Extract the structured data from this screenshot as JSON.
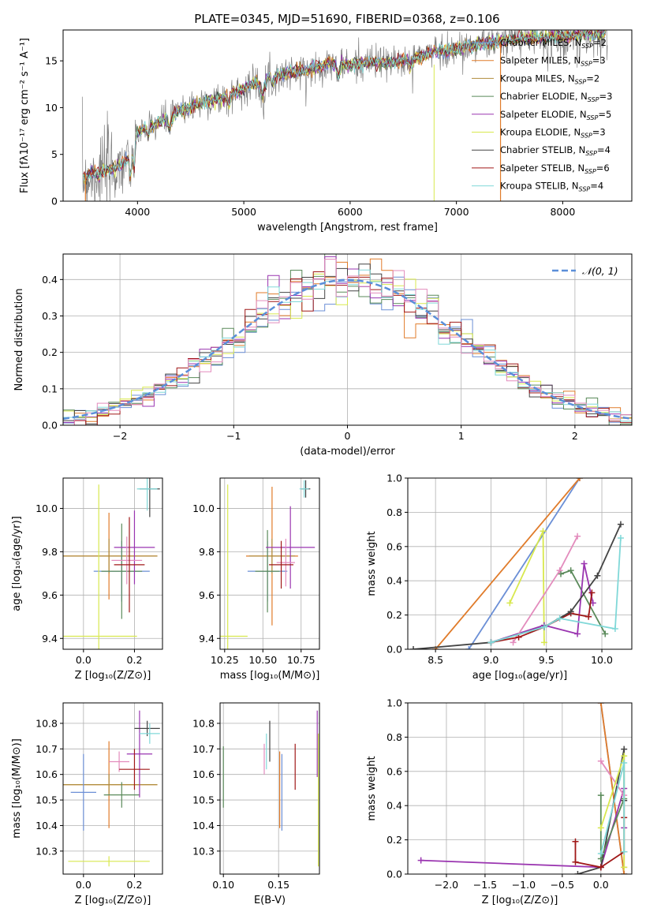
{
  "figure": {
    "title": "PLATE=0345, MJD=51690, FIBERID=0368, z=0.106"
  },
  "palette": {
    "Chabrier MILES": "#6b8fd6",
    "Salpeter MILES": "#e07b2a",
    "Kroupa MILES": "#b08c3c",
    "Chabrier ELODIE": "#5a8a5a",
    "Salpeter ELODIE": "#9a35b0",
    "Kroupa ELODIE": "#d8e84e",
    "Chabrier STELIB": "#444444",
    "Salpeter STELIB": "#a01818",
    "Kroupa STELIB": "#80d8d8",
    "extra_pink": "#e38cbd",
    "normal_curve": "#5b8fd9",
    "data_spectrum": "#808080"
  },
  "chart_data": [
    {
      "id": "spectrum",
      "type": "line",
      "xlabel": "wavelength [Angstrom, rest frame]",
      "ylabel": "Flux [fλ10⁻¹⁷ erg cm⁻² s⁻¹ A⁻¹]",
      "xlim": [
        3300,
        8650
      ],
      "ylim": [
        0,
        18.3
      ],
      "xticks": [
        4000,
        5000,
        6000,
        7000,
        8000
      ],
      "yticks": [
        0,
        5,
        10,
        15
      ],
      "legend_position": "right",
      "legend": [
        {
          "label": "Chabrier MILES, N",
          "sub": "SSP",
          "suffix": "=2",
          "key": "Chabrier MILES"
        },
        {
          "label": "Salpeter MILES, N",
          "sub": "SSP",
          "suffix": "=3",
          "key": "Salpeter MILES"
        },
        {
          "label": "Kroupa MILES, N",
          "sub": "SSP",
          "suffix": "=2",
          "key": "Kroupa MILES"
        },
        {
          "label": "Chabrier ELODIE, N",
          "sub": "SSP",
          "suffix": "=3",
          "key": "Chabrier ELODIE"
        },
        {
          "label": "Salpeter ELODIE, N",
          "sub": "SSP",
          "suffix": "=5",
          "key": "Salpeter ELODIE"
        },
        {
          "label": "Kroupa ELODIE, N",
          "sub": "SSP",
          "suffix": "=3",
          "key": "Kroupa ELODIE"
        },
        {
          "label": "Chabrier STELIB, N",
          "sub": "SSP",
          "suffix": "=4",
          "key": "Chabrier STELIB"
        },
        {
          "label": "Salpeter STELIB, N",
          "sub": "SSP",
          "suffix": "=6",
          "key": "Salpeter STELIB"
        },
        {
          "label": "Kroupa STELIB, N",
          "sub": "SSP",
          "suffix": "=4",
          "key": "Kroupa STELIB"
        }
      ],
      "continuum": [
        [
          3480,
          2.6
        ],
        [
          3600,
          2.9
        ],
        [
          3700,
          3.2
        ],
        [
          3800,
          3.5
        ],
        [
          3900,
          4.5
        ],
        [
          4000,
          7.4
        ],
        [
          4200,
          8.4
        ],
        [
          4400,
          9.6
        ],
        [
          4600,
          10.5
        ],
        [
          4800,
          11.0
        ],
        [
          5000,
          12.0
        ],
        [
          5200,
          13.2
        ],
        [
          5400,
          13.7
        ],
        [
          5600,
          14.0
        ],
        [
          5800,
          14.7
        ],
        [
          6000,
          14.5
        ],
        [
          6200,
          14.9
        ],
        [
          6400,
          14.8
        ],
        [
          6600,
          15.3
        ],
        [
          6800,
          16.0
        ],
        [
          7000,
          16.2
        ],
        [
          7200,
          16.8
        ],
        [
          7400,
          17.0
        ],
        [
          7600,
          17.4
        ],
        [
          7800,
          17.5
        ],
        [
          8000,
          17.6
        ],
        [
          8200,
          17.8
        ],
        [
          8400,
          17.9
        ]
      ]
    },
    {
      "id": "residuals",
      "type": "bar",
      "xlabel": "(data-model)/error",
      "ylabel": "Normed distribution",
      "xlim": [
        -2.5,
        2.5
      ],
      "ylim": [
        0,
        0.47
      ],
      "xticks": [
        -2,
        -1,
        0,
        1,
        2
      ],
      "yticks": [
        0.0,
        0.1,
        0.2,
        0.3,
        0.4
      ],
      "bin_width": 0.1,
      "legend": "𝒩(0, 1)",
      "legend_position": "top-right",
      "series_keys": [
        "Chabrier MILES",
        "Salpeter MILES",
        "Chabrier ELODIE",
        "Salpeter ELODIE",
        "Kroupa ELODIE",
        "Chabrier STELIB",
        "Salpeter STELIB",
        "Kroupa STELIB",
        "extra_pink"
      ]
    },
    {
      "id": "age-vs-Z",
      "type": "scatter",
      "xlabel": "Z [log₁₀(Z/Z⊙)]",
      "ylabel": "age  [log₁₀(age/yr)]",
      "xlim": [
        -0.08,
        0.31
      ],
      "ylim": [
        9.35,
        10.14
      ],
      "xticks": [
        0.0,
        0.2
      ],
      "yticks": [
        9.4,
        9.6,
        9.8,
        10.0
      ],
      "points": [
        {
          "key": "Salpeter MILES",
          "x": 0.1,
          "y": 9.78,
          "xe": 0.19,
          "ye": 0.2
        },
        {
          "key": "Kroupa MILES",
          "x": 0.1,
          "y": 9.78,
          "xe": 0.19,
          "ye": 0.08
        },
        {
          "key": "Chabrier MILES",
          "x": 0.15,
          "y": 9.71,
          "xe": 0.11,
          "ye": 0.14
        },
        {
          "key": "Chabrier ELODIE",
          "x": 0.15,
          "y": 9.71,
          "xe": 0.08,
          "ye": 0.22
        },
        {
          "key": "Salpeter ELODIE",
          "x": 0.2,
          "y": 9.82,
          "xe": 0.08,
          "ye": 0.17
        },
        {
          "key": "extra_pink",
          "x": 0.17,
          "y": 9.76,
          "xe": 0.06,
          "ye": 0.11
        },
        {
          "key": "Salpeter STELIB",
          "x": 0.18,
          "y": 9.74,
          "xe": 0.06,
          "ye": 0.22
        },
        {
          "key": "Kroupa ELODIE",
          "x": 0.06,
          "y": 9.41,
          "xe": 0.15,
          "ye": 0.7
        },
        {
          "key": "Chabrier STELIB",
          "x": 0.26,
          "y": 10.09,
          "xe": 0.04,
          "ye": 0.13
        },
        {
          "key": "Kroupa STELIB",
          "x": 0.25,
          "y": 10.09,
          "xe": 0.04,
          "ye": 0.1
        }
      ]
    },
    {
      "id": "age-vs-mass",
      "type": "scatter",
      "xlabel": "mass [log₁₀(M/M⊙)]",
      "ylabel": "",
      "xlim": [
        10.22,
        10.87
      ],
      "ylim": [
        9.35,
        10.14
      ],
      "xticks": [
        10.25,
        10.5,
        10.75
      ],
      "yticks": [
        9.4,
        9.6,
        9.8,
        10.0
      ],
      "points": [
        {
          "key": "Salpeter MILES",
          "x": 10.56,
          "y": 9.78,
          "xe": 0.17,
          "ye": 0.32
        },
        {
          "key": "Kroupa MILES",
          "x": 10.56,
          "y": 9.78,
          "xe": 0.15,
          "ye": 0.08
        },
        {
          "key": "Chabrier MILES",
          "x": 10.53,
          "y": 9.71,
          "xe": 0.13,
          "ye": 0.14
        },
        {
          "key": "Chabrier ELODIE",
          "x": 10.53,
          "y": 9.71,
          "xe": 0.08,
          "ye": 0.19
        },
        {
          "key": "Salpeter ELODIE",
          "x": 10.68,
          "y": 9.82,
          "xe": 0.16,
          "ye": 0.19
        },
        {
          "key": "extra_pink",
          "x": 10.65,
          "y": 9.75,
          "xe": 0.06,
          "ye": 0.11
        },
        {
          "key": "Salpeter STELIB",
          "x": 10.62,
          "y": 9.74,
          "xe": 0.08,
          "ye": 0.11
        },
        {
          "key": "Kroupa ELODIE",
          "x": 10.27,
          "y": 9.41,
          "xe": 0.13,
          "ye": 0.7
        },
        {
          "key": "Chabrier STELIB",
          "x": 10.78,
          "y": 10.09,
          "xe": 0.03,
          "ye": 0.04
        },
        {
          "key": "Kroupa STELIB",
          "x": 10.77,
          "y": 10.09,
          "xe": 0.03,
          "ye": 0.04
        }
      ]
    },
    {
      "id": "massweight-vs-age",
      "type": "line",
      "xlabel": "age  [log₁₀(age/yr)]",
      "ylabel": "mass weight",
      "xlim": [
        8.25,
        10.27
      ],
      "ylim": [
        0,
        1
      ],
      "xticks": [
        8.5,
        9.0,
        9.5,
        10.0
      ],
      "yticks": [
        0.0,
        0.2,
        0.4,
        0.6,
        0.8,
        1.0
      ],
      "series": [
        {
          "key": "Chabrier MILES",
          "points": [
            [
              8.8,
              0.0
            ],
            [
              9.8,
              1.0
            ]
          ]
        },
        {
          "key": "Salpeter MILES",
          "points": [
            [
              8.5,
              0.0
            ],
            [
              9.8,
              1.0
            ]
          ]
        },
        {
          "key": "Kroupa ELODIE",
          "points": [
            [
              9.17,
              0.27
            ],
            [
              9.47,
              0.69
            ],
            [
              9.48,
              0.04
            ]
          ]
        },
        {
          "key": "Chabrier ELODIE",
          "points": [
            [
              9.63,
              0.44
            ],
            [
              9.72,
              0.46
            ],
            [
              10.03,
              0.09
            ]
          ]
        },
        {
          "key": "Salpeter ELODIE",
          "points": [
            [
              9.0,
              0.04
            ],
            [
              9.48,
              0.14
            ],
            [
              9.78,
              0.09
            ],
            [
              9.84,
              0.5
            ],
            [
              9.92,
              0.27
            ]
          ]
        },
        {
          "key": "extra_pink",
          "points": [
            [
              9.2,
              0.04
            ],
            [
              9.62,
              0.46
            ],
            [
              9.78,
              0.66
            ]
          ]
        },
        {
          "key": "Salpeter STELIB",
          "points": [
            [
              9.0,
              0.04
            ],
            [
              9.25,
              0.07
            ],
            [
              9.48,
              0.13
            ],
            [
              9.72,
              0.21
            ],
            [
              9.88,
              0.19
            ],
            [
              9.91,
              0.33
            ]
          ]
        },
        {
          "key": "Chabrier STELIB",
          "points": [
            [
              8.3,
              0.0
            ],
            [
              9.0,
              0.04
            ],
            [
              9.48,
              0.13
            ],
            [
              9.72,
              0.22
            ],
            [
              9.96,
              0.43
            ],
            [
              10.17,
              0.73
            ]
          ]
        },
        {
          "key": "Kroupa STELIB",
          "points": [
            [
              9.0,
              0.04
            ],
            [
              9.48,
              0.13
            ],
            [
              9.62,
              0.18
            ],
            [
              10.12,
              0.12
            ],
            [
              10.17,
              0.65
            ]
          ]
        }
      ]
    },
    {
      "id": "mass-vs-Z",
      "type": "scatter",
      "xlabel": "Z [log₁₀(Z/Z⊙)]",
      "ylabel": "mass [log₁₀(M/M⊙)]",
      "xlim": [
        -0.08,
        0.31
      ],
      "ylim": [
        10.21,
        10.88
      ],
      "xticks": [
        0.0,
        0.2
      ],
      "yticks": [
        10.3,
        10.4,
        10.5,
        10.6,
        10.7,
        10.8
      ],
      "points": [
        {
          "key": "Salpeter MILES",
          "x": 0.1,
          "y": 10.56,
          "xe": 0.19,
          "ye": 0.17
        },
        {
          "key": "Kroupa MILES",
          "x": 0.1,
          "y": 10.56,
          "xe": 0.19,
          "ye": 0.04
        },
        {
          "key": "Chabrier MILES",
          "x": 0.0,
          "y": 10.53,
          "xe": 0.05,
          "ye": 0.15
        },
        {
          "key": "Chabrier ELODIE",
          "x": 0.15,
          "y": 10.52,
          "xe": 0.07,
          "ye": 0.05
        },
        {
          "key": "Salpeter ELODIE",
          "x": 0.22,
          "y": 10.68,
          "xe": 0.05,
          "ye": 0.17
        },
        {
          "key": "extra_pink",
          "x": 0.14,
          "y": 10.65,
          "xe": 0.04,
          "ye": 0.04
        },
        {
          "key": "Salpeter STELIB",
          "x": 0.2,
          "y": 10.62,
          "xe": 0.06,
          "ye": 0.08
        },
        {
          "key": "Kroupa ELODIE",
          "x": 0.1,
          "y": 10.26,
          "xe": 0.16,
          "ye": 0.02
        },
        {
          "key": "Chabrier STELIB",
          "x": 0.25,
          "y": 10.78,
          "xe": 0.05,
          "ye": 0.03
        },
        {
          "key": "Kroupa STELIB",
          "x": 0.26,
          "y": 10.76,
          "xe": 0.04,
          "ye": 0.04
        }
      ]
    },
    {
      "id": "mass-vs-EBV",
      "type": "scatter",
      "xlabel": "E(B-V)",
      "ylabel": "",
      "xlim": [
        0.097,
        0.187
      ],
      "ylim": [
        10.21,
        10.88
      ],
      "xticks": [
        0.1,
        0.15
      ],
      "yticks": [
        10.3,
        10.4,
        10.5,
        10.6,
        10.7,
        10.8
      ],
      "points": [
        {
          "key": "Chabrier ELODIE",
          "x": 0.1,
          "y": 10.59,
          "xe": 0,
          "ye": 0.12
        },
        {
          "key": "Salpeter MILES",
          "x": 0.151,
          "y": 10.54,
          "xe": 0,
          "ye": 0.15
        },
        {
          "key": "Chabrier MILES",
          "x": 0.153,
          "y": 10.53,
          "xe": 0,
          "ye": 0.15
        },
        {
          "key": "extra_pink",
          "x": 0.137,
          "y": 10.66,
          "xe": 0,
          "ye": 0.06
        },
        {
          "key": "Chabrier STELIB",
          "x": 0.142,
          "y": 10.73,
          "xe": 0,
          "ye": 0.08
        },
        {
          "key": "Kroupa STELIB",
          "x": 0.139,
          "y": 10.69,
          "xe": 0,
          "ye": 0.07
        },
        {
          "key": "Salpeter STELIB",
          "x": 0.165,
          "y": 10.63,
          "xe": 0,
          "ye": 0.09
        },
        {
          "key": "Salpeter ELODIE",
          "x": 0.185,
          "y": 10.72,
          "xe": 0,
          "ye": 0.13
        },
        {
          "key": "Kroupa ELODIE",
          "x": 0.186,
          "y": 10.5,
          "xe": 0,
          "ye": 0.26
        }
      ]
    },
    {
      "id": "massweight-vs-Z",
      "type": "line",
      "xlabel": "Z [log₁₀(Z/Z⊙)]",
      "ylabel": "mass weight",
      "xlim": [
        -2.5,
        0.4
      ],
      "ylim": [
        0,
        1
      ],
      "xticks": [
        -2.0,
        -1.5,
        -1.0,
        -0.5,
        0.0
      ],
      "yticks": [
        0.0,
        0.2,
        0.4,
        0.6,
        0.8,
        1.0
      ],
      "series": [
        {
          "key": "Chabrier MILES",
          "points": [
            [
              0.0,
              1.0
            ],
            [
              0.3,
              0.0
            ]
          ]
        },
        {
          "key": "Salpeter MILES",
          "points": [
            [
              0.0,
              1.0
            ],
            [
              0.3,
              0.0
            ]
          ]
        },
        {
          "key": "Salpeter ELODIE",
          "points": [
            [
              -2.33,
              0.08
            ],
            [
              0.0,
              0.04
            ],
            [
              0.3,
              0.5
            ],
            [
              0.3,
              0.27
            ]
          ]
        },
        {
          "key": "Chabrier STELIB",
          "points": [
            [
              -0.3,
              0.0
            ],
            [
              0.0,
              0.04
            ],
            [
              0.3,
              0.73
            ],
            [
              0.3,
              0.43
            ]
          ]
        },
        {
          "key": "Salpeter STELIB",
          "points": [
            [
              -0.33,
              0.19
            ],
            [
              -0.33,
              0.07
            ],
            [
              0.0,
              0.04
            ],
            [
              0.3,
              0.13
            ],
            [
              0.3,
              0.33
            ]
          ]
        },
        {
          "key": "Chabrier ELODIE",
          "points": [
            [
              0.0,
              0.46
            ],
            [
              0.0,
              0.09
            ],
            [
              0.3,
              0.44
            ]
          ]
        },
        {
          "key": "extra_pink",
          "points": [
            [
              0.0,
              0.66
            ],
            [
              0.3,
              0.46
            ],
            [
              0.3,
              0.04
            ]
          ]
        },
        {
          "key": "Kroupa ELODIE",
          "points": [
            [
              0.0,
              0.27
            ],
            [
              0.3,
              0.69
            ],
            [
              0.3,
              0.04
            ]
          ]
        },
        {
          "key": "Kroupa STELIB",
          "points": [
            [
              0.0,
              0.12
            ],
            [
              0.3,
              0.65
            ],
            [
              0.3,
              0.13
            ]
          ]
        }
      ]
    }
  ]
}
